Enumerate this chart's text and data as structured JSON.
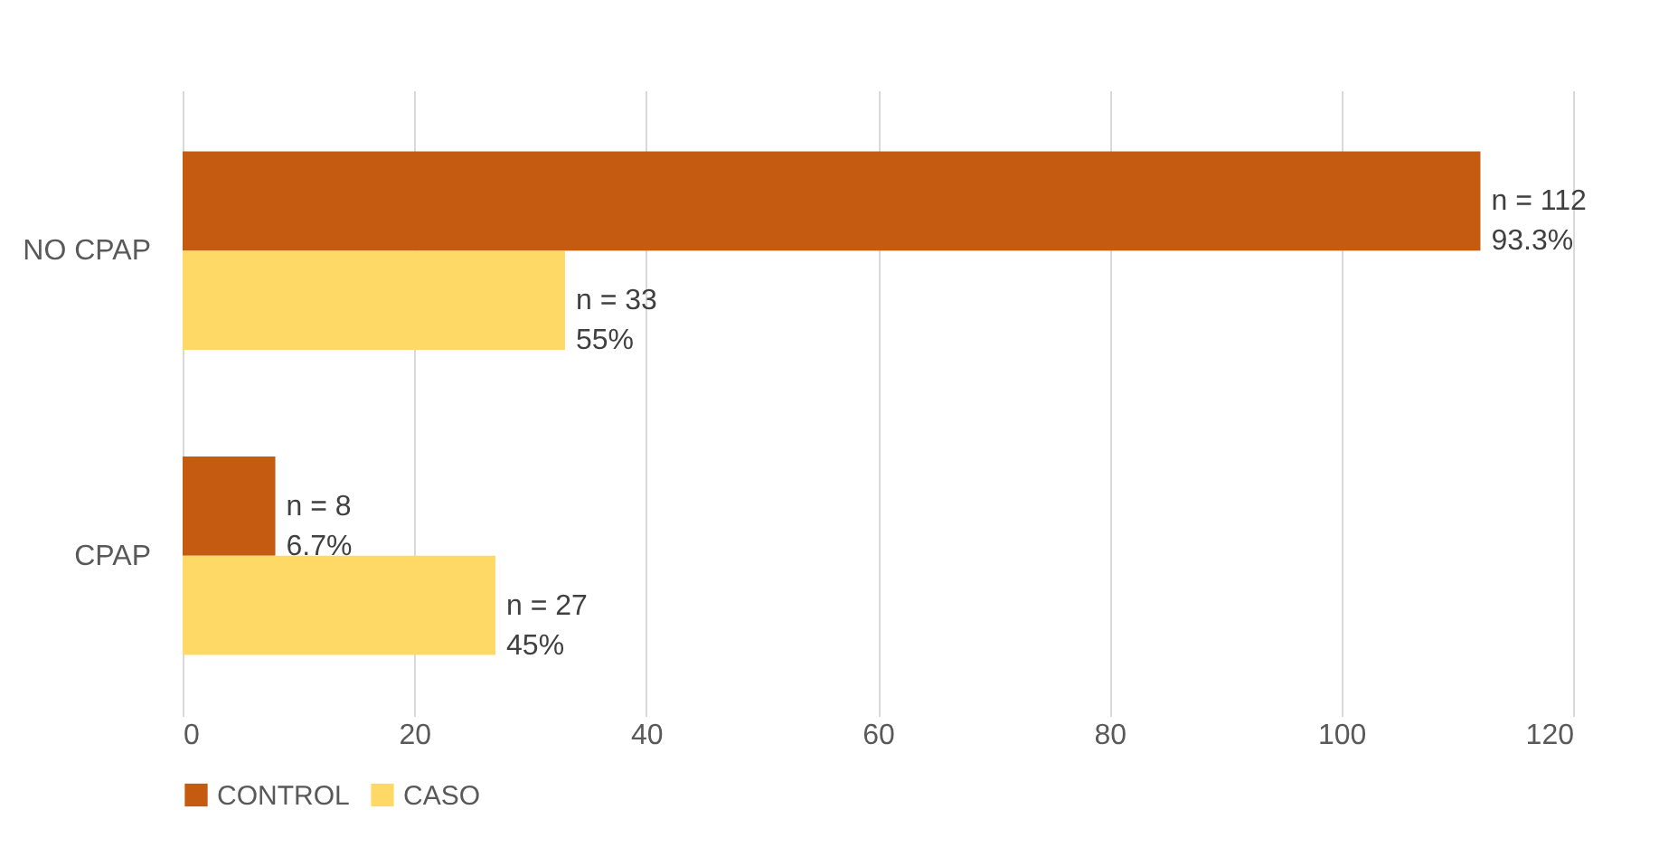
{
  "chart_data": {
    "type": "bar",
    "orientation": "horizontal",
    "categories": [
      "NO CPAP",
      "CPAP"
    ],
    "series": [
      {
        "name": "CONTROL",
        "color": "#c55a11",
        "values": [
          112,
          8
        ],
        "value_labels": [
          "n = 112\n93.3%",
          "n = 8\n6.7%"
        ]
      },
      {
        "name": "CASO",
        "color": "#ffd966",
        "values": [
          33,
          27
        ],
        "value_labels": [
          "n = 33\n55%",
          "n = 27\n45%"
        ]
      }
    ],
    "xlim": [
      0,
      120
    ],
    "xticks": [
      0,
      20,
      40,
      60,
      80,
      100,
      120
    ],
    "grid": "x",
    "legend": "bottom"
  }
}
